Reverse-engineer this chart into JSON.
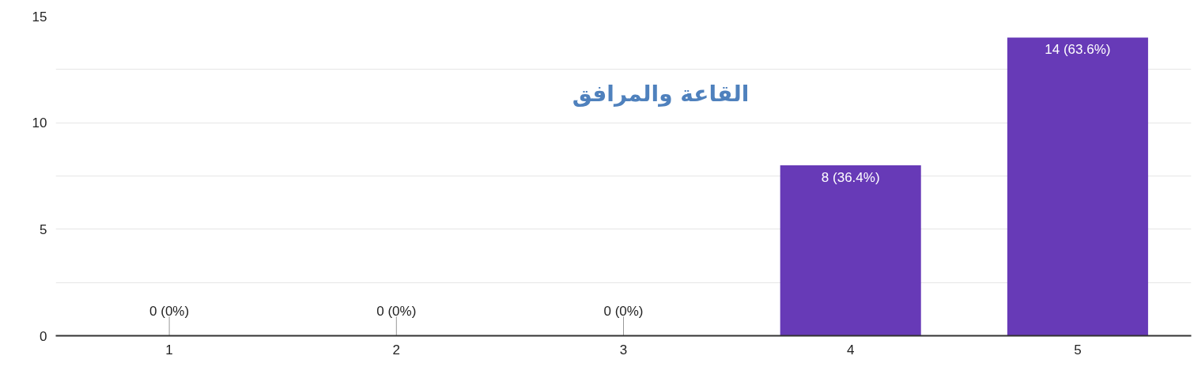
{
  "chart_data": {
    "type": "bar",
    "title": "القاعة والمرافق",
    "categories": [
      "1",
      "2",
      "3",
      "4",
      "5"
    ],
    "values": [
      0,
      0,
      0,
      8,
      14
    ],
    "value_labels": [
      "0 (0%)",
      "0 (0%)",
      "0 (0%)",
      "8 (36.4%)",
      "14 (63.6%)"
    ],
    "color": "#673ab7",
    "ylim": [
      0,
      15
    ],
    "yticks": [
      0,
      {
        "value": 2.5,
        "label": null
      },
      5,
      {
        "value": 7.5,
        "label": null
      },
      10,
      {
        "value": 12.5,
        "label": null
      },
      15
    ],
    "grid": "y"
  }
}
